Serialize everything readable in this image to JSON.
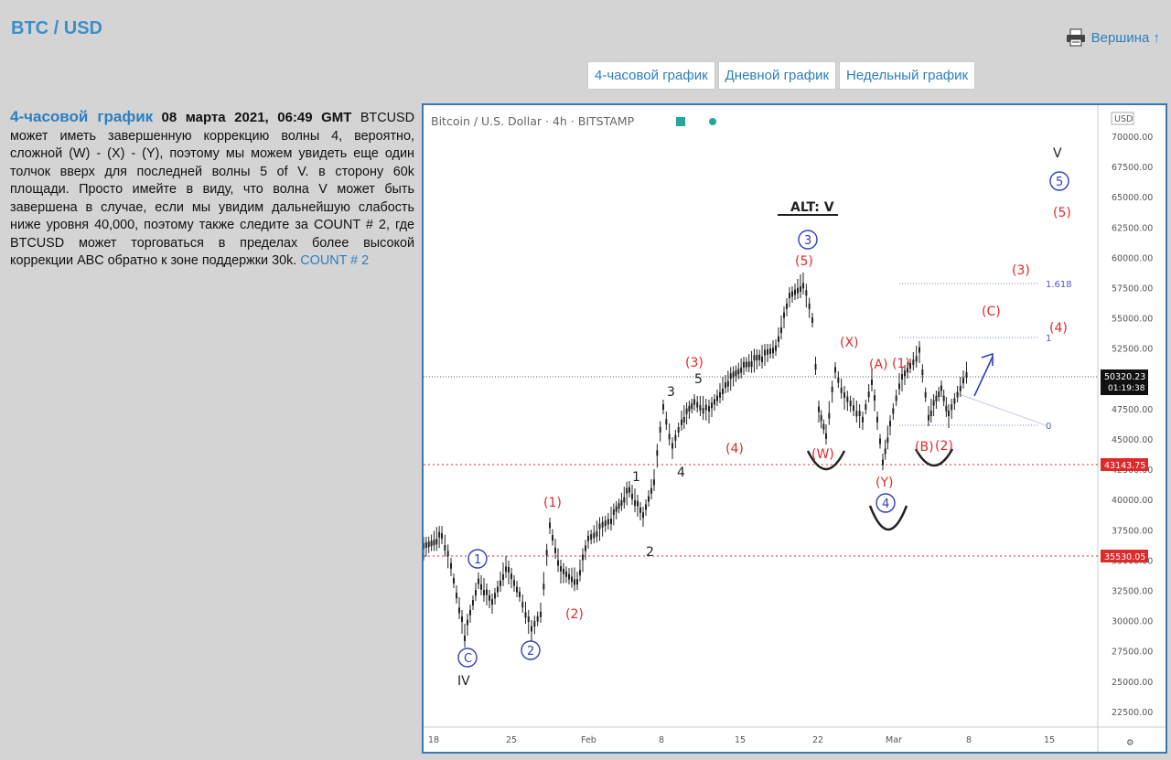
{
  "page": {
    "title": "BTC / USD",
    "top_link": "Вершина ↑"
  },
  "tabs": [
    "4-часовой график",
    "Дневной график",
    "Недельный график"
  ],
  "article": {
    "heading_link": "4-часовой график",
    "date": "08 марта 2021, 06:49 GMT",
    "body": "BTCUSD может иметь завершенную коррекцию волны 4, вероятно, сложной (W) - (X) - (Y), поэтому мы можем увидеть еще один толчок вверх для последней волны 5 of V. в сторону 60k площади. Просто имейте в виду, что волна V может быть завершена в случае, если мы увидим дальнейшую слабость ниже уровня 40,000, поэтому также следите за COUNT # 2, где BTCUSD может торговаться в пределах более высокой коррекции ABC обратно к зоне поддержки 30k.",
    "count_link": "COUNT # 2"
  },
  "chart": {
    "header": "Bitcoin / U.S. Dollar · 4h · BITSTAMP",
    "currency_badge": "USD",
    "price_labels": [
      "70000.00",
      "67500.00",
      "65000.00",
      "62500.00",
      "60000.00",
      "57500.00",
      "55000.00",
      "52500.00",
      "47500.00",
      "45000.00",
      "42500.00",
      "40000.00",
      "37500.00",
      "35000.00",
      "32500.00",
      "30000.00",
      "27500.00",
      "25000.00",
      "22500.00"
    ],
    "x_labels": [
      "18",
      "25",
      "Feb",
      "8",
      "15",
      "22",
      "Mar",
      "8",
      "15"
    ],
    "current_price": "50320.23",
    "countdown": "01:19:38",
    "level_1": "43143.75",
    "level_2": "35530.05",
    "fib_labels": [
      "1.618",
      "1",
      "0"
    ],
    "waves": {
      "V": "V",
      "five_circle": "5",
      "five_paren": "(5)",
      "alt": "ALT: V",
      "three_circle": "3",
      "five_red": "(5)",
      "three_red_top": "(3)",
      "c_red": "(C)",
      "four_red_right": "(4)",
      "x_red": "(X)",
      "a_red": "(A)",
      "one_red_r": "(1)",
      "three_red": "(3)",
      "five_blk": "5",
      "three_blk": "3",
      "four_red": "(4)",
      "w_red": "(W)",
      "b_red": "(B)",
      "two_red_r": "(2)",
      "y_red": "(Y)",
      "four_circle": "4",
      "one_red": "(1)",
      "one_blk": "1",
      "four_blk": "4",
      "two_blk": "2",
      "one_circle": "1",
      "two_red": "(2)",
      "two_circle": "2",
      "c_circle": "C",
      "IV": "IV"
    },
    "colors": {
      "red": "#e02a2a",
      "blue": "#2f3fbf",
      "frame": "#3a77b5",
      "candle": "#222222"
    }
  }
}
